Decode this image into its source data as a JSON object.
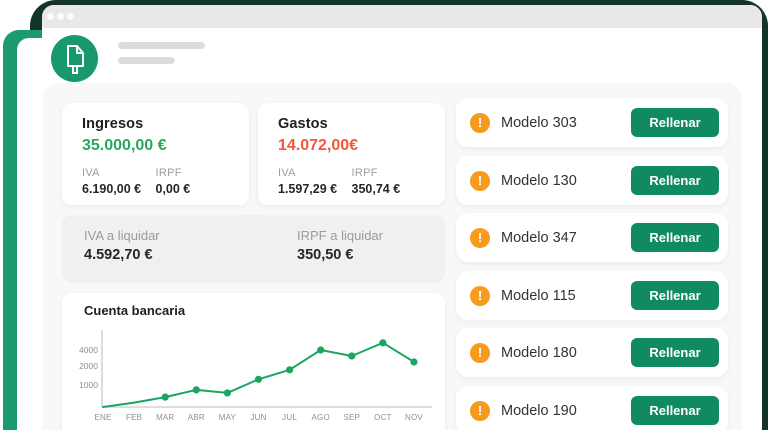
{
  "window": {
    "titlebar_dots": [
      "dot",
      "dot",
      "dot"
    ]
  },
  "brand": {
    "logo_icon": "document-icon"
  },
  "cards": {
    "ingresos": {
      "title": "Ingresos",
      "value": "35.000,00 €",
      "cols": [
        {
          "label": "IVA",
          "value": "6.190,00 €"
        },
        {
          "label": "IRPF",
          "value": "0,00 €"
        }
      ]
    },
    "gastos": {
      "title": "Gastos",
      "value": "14.072,00€",
      "cols": [
        {
          "label": "IVA",
          "value": "1.597,29 €"
        },
        {
          "label": "IRPF",
          "value": "350,74 €"
        }
      ]
    },
    "liquidar": {
      "cols": [
        {
          "label": "IVA a liquidar",
          "value": "4.592,70 €"
        },
        {
          "label": "IRPF a liquidar",
          "value": "350,50 €"
        }
      ]
    }
  },
  "chart_data": {
    "type": "line",
    "title": "Cuenta bancaria",
    "x": [
      "ENE",
      "FEB",
      "MAR",
      "ABR",
      "MAY",
      "JUN",
      "JUL",
      "AGO",
      "SEP",
      "OCT",
      "NOV"
    ],
    "values": [
      0,
      200,
      450,
      780,
      640,
      1300,
      1800,
      4000,
      3250,
      4900,
      2500
    ],
    "markers": [
      false,
      false,
      true,
      true,
      true,
      true,
      true,
      true,
      true,
      true,
      true
    ],
    "yticks": [
      1000,
      2000,
      4000
    ],
    "ylim": [
      0,
      5000
    ],
    "grid": false,
    "legend": "none",
    "line_color": "#1aa561"
  },
  "models": {
    "warning_glyph": "!",
    "items": [
      {
        "label": "Modelo 303",
        "action": "Rellenar"
      },
      {
        "label": "Modelo 130",
        "action": "Rellenar"
      },
      {
        "label": "Modelo 347",
        "action": "Rellenar"
      },
      {
        "label": "Modelo 115",
        "action": "Rellenar"
      },
      {
        "label": "Modelo 180",
        "action": "Rellenar"
      },
      {
        "label": "Modelo 190",
        "action": "Rellenar"
      }
    ]
  },
  "colors": {
    "brand-green": "#18996b",
    "button-green": "#0f8a62",
    "positive-green": "#27a95b",
    "negative-red": "#f4573a",
    "warning-orange": "#f69b1e",
    "chart-line": "#1aa561",
    "dark-backdrop": "#14342b",
    "backdrop-green": "#1c9c6e"
  }
}
